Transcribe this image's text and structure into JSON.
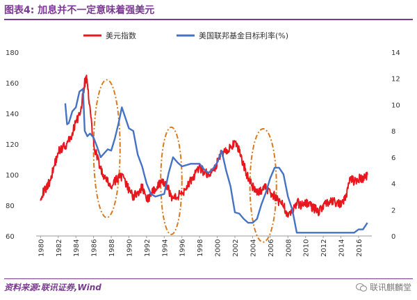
{
  "header": {
    "title": "图表4:   加息并不一定意味着强美元"
  },
  "footer": {
    "source": "资料来源:联讯证券,Wind",
    "watermark": "联讯麒麟堂"
  },
  "colors": {
    "accent": "#7a3a90",
    "dxy": "#e8171d",
    "fed": "#4472c4",
    "ellipse": "#d97a1e"
  },
  "chart_data": {
    "type": "line",
    "title": "",
    "xlim": [
      1979.5,
      2017.5
    ],
    "y_left": {
      "lim": [
        60,
        180
      ],
      "ticks": [
        "60",
        "80",
        "100",
        "120",
        "140",
        "160",
        "180"
      ]
    },
    "y_right": {
      "lim": [
        0,
        14
      ],
      "ticks": [
        "0",
        "2",
        "4",
        "6",
        "8",
        "10",
        "12",
        "14"
      ]
    },
    "x_ticks": [
      "1980",
      "1982",
      "1984",
      "1986",
      "1988",
      "1990",
      "1992",
      "1994",
      "1996",
      "1998",
      "2000",
      "2002",
      "2004",
      "2006",
      "2008",
      "2010",
      "2012",
      "2014",
      "2016"
    ],
    "legend_position": "top",
    "series": [
      {
        "name": "美元指数",
        "axis": "left",
        "color": "#e8171d",
        "x": [
          1980.0,
          1980.5,
          1981.0,
          1981.5,
          1982.0,
          1982.5,
          1983.0,
          1983.5,
          1984.0,
          1984.5,
          1985.0,
          1985.2,
          1985.5,
          1986.0,
          1986.5,
          1987.0,
          1987.5,
          1988.0,
          1988.5,
          1989.0,
          1989.5,
          1990.0,
          1990.5,
          1991.0,
          1991.5,
          1992.0,
          1992.5,
          1993.0,
          1993.5,
          1994.0,
          1994.5,
          1995.0,
          1995.5,
          1996.0,
          1996.5,
          1997.0,
          1997.5,
          1998.0,
          1998.5,
          1999.0,
          1999.5,
          2000.0,
          2000.5,
          2001.0,
          2001.5,
          2002.0,
          2002.5,
          2003.0,
          2003.5,
          2004.0,
          2004.5,
          2005.0,
          2005.5,
          2006.0,
          2006.5,
          2007.0,
          2007.5,
          2008.0,
          2008.5,
          2009.0,
          2009.5,
          2010.0,
          2010.5,
          2011.0,
          2011.5,
          2012.0,
          2012.5,
          2013.0,
          2013.5,
          2014.0,
          2014.5,
          2015.0,
          2015.5,
          2016.0,
          2016.5,
          2017.0
        ],
        "y": [
          86,
          90,
          95,
          105,
          115,
          118,
          120,
          125,
          135,
          140,
          160,
          163,
          148,
          120,
          110,
          100,
          96,
          92,
          96,
          100,
          96,
          90,
          86,
          88,
          92,
          84,
          86,
          92,
          94,
          95,
          90,
          84,
          86,
          88,
          92,
          96,
          100,
          104,
          102,
          100,
          102,
          108,
          114,
          116,
          118,
          120,
          116,
          106,
          98,
          92,
          88,
          90,
          92,
          88,
          86,
          82,
          80,
          74,
          76,
          82,
          80,
          82,
          80,
          78,
          76,
          80,
          82,
          82,
          82,
          80,
          84,
          98,
          96,
          98,
          97,
          100
        ]
      },
      {
        "name": "美国联邦基金目标利率(%)",
        "axis": "right",
        "color": "#4472c4",
        "x": [
          1982.8,
          1983.0,
          1983.2,
          1983.6,
          1984.0,
          1984.4,
          1984.8,
          1985.0,
          1985.3,
          1985.6,
          1986.0,
          1986.4,
          1986.8,
          1987.2,
          1987.6,
          1988.0,
          1988.4,
          1988.8,
          1989.2,
          1989.6,
          1990.0,
          1990.5,
          1991.0,
          1991.5,
          1992.0,
          1992.5,
          1993.0,
          1994.0,
          1994.5,
          1995.0,
          1995.5,
          1996.0,
          1997.0,
          1998.0,
          1998.6,
          1999.0,
          1999.5,
          2000.0,
          2000.5,
          2001.0,
          2001.5,
          2002.0,
          2002.5,
          2003.0,
          2003.5,
          2004.0,
          2004.5,
          2005.0,
          2005.5,
          2006.0,
          2006.5,
          2007.0,
          2007.5,
          2008.0,
          2008.5,
          2009.0,
          2010.0,
          2012.0,
          2014.0,
          2015.5,
          2016.0,
          2016.5,
          2017.0
        ],
        "y": [
          10.1,
          8.5,
          8.6,
          9.5,
          9.8,
          11.0,
          11.2,
          8.0,
          7.6,
          7.8,
          7.5,
          6.8,
          6.0,
          6.3,
          6.6,
          6.5,
          7.4,
          8.5,
          9.8,
          9.0,
          8.2,
          8.0,
          6.2,
          5.3,
          4.0,
          3.2,
          3.0,
          3.2,
          4.8,
          6.0,
          5.6,
          5.3,
          5.5,
          5.5,
          5.0,
          4.8,
          5.1,
          5.6,
          6.5,
          5.0,
          3.8,
          1.8,
          1.7,
          1.3,
          1.0,
          1.0,
          1.3,
          2.4,
          3.3,
          4.4,
          5.2,
          5.2,
          4.7,
          3.0,
          2.0,
          0.25,
          0.25,
          0.25,
          0.25,
          0.25,
          0.5,
          0.5,
          1.0
        ]
      }
    ],
    "annotations": [
      {
        "shape": "ellipse",
        "cx_year": 1987.5,
        "cy_value": 117,
        "rx_years": 1.5,
        "ry_value": 45
      },
      {
        "shape": "ellipse",
        "cx_year": 1994.8,
        "cy_value": 96,
        "rx_years": 1.2,
        "ry_value": 35
      },
      {
        "shape": "ellipse",
        "cx_year": 2005.2,
        "cy_value": 93,
        "rx_years": 1.5,
        "ry_value": 37
      }
    ]
  }
}
